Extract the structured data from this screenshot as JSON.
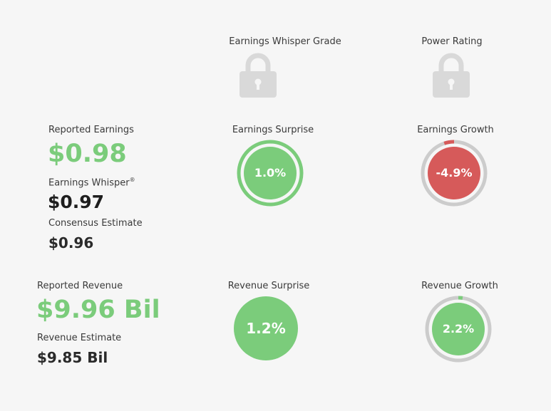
{
  "headers": {
    "grade": "Earnings Whisper Grade",
    "power": "Power Rating"
  },
  "icons": {
    "grade_lock": "lock-icon",
    "power_lock": "lock-icon"
  },
  "earnings": {
    "reported_label": "Reported Earnings",
    "reported_value": "$0.98",
    "whisper_label": "Earnings Whisper",
    "whisper_mark": "®",
    "whisper_value": "$0.97",
    "consensus_label": "Consensus Estimate",
    "consensus_value": "$0.96",
    "surprise_label": "Earnings Surprise",
    "surprise_value": "1.0%",
    "growth_label": "Earnings Growth",
    "growth_value": "-4.9%"
  },
  "revenue": {
    "reported_label": "Reported Revenue",
    "reported_value": "$9.96 Bil",
    "estimate_label": "Revenue Estimate",
    "estimate_value": "$9.85 Bil",
    "surprise_label": "Revenue Surprise",
    "surprise_value": "1.2%",
    "growth_label": "Revenue Growth",
    "growth_value": "2.2%"
  },
  "colors": {
    "green": "#7bcc7b",
    "red": "#d65a5a",
    "ring_gray": "#cccccc",
    "lock_gray": "#d9d9d9"
  }
}
